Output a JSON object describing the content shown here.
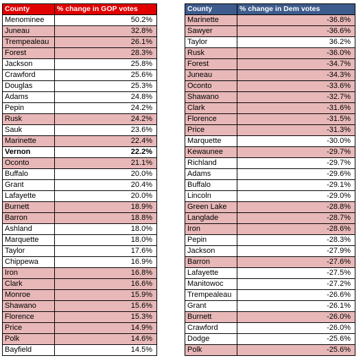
{
  "gop_table": {
    "header": {
      "county": "County",
      "change": "% change in GOP votes"
    },
    "rows": [
      {
        "county": "Menominee",
        "value": "50.2%",
        "highlight": false,
        "bold": false
      },
      {
        "county": "Juneau",
        "value": "32.8%",
        "highlight": true,
        "bold": false
      },
      {
        "county": "Trempealeau",
        "value": "26.1%",
        "highlight": true,
        "bold": false
      },
      {
        "county": "Forest",
        "value": "28.3%",
        "highlight": true,
        "bold": false
      },
      {
        "county": "Jackson",
        "value": "25.8%",
        "highlight": false,
        "bold": false
      },
      {
        "county": "Crawford",
        "value": "25.6%",
        "highlight": false,
        "bold": false
      },
      {
        "county": "Douglas",
        "value": "25.3%",
        "highlight": false,
        "bold": false
      },
      {
        "county": "Adams",
        "value": "24.8%",
        "highlight": false,
        "bold": false
      },
      {
        "county": "Pepin",
        "value": "24.2%",
        "highlight": false,
        "bold": false
      },
      {
        "county": "Rusk",
        "value": "24.2%",
        "highlight": true,
        "bold": false
      },
      {
        "county": "Sauk",
        "value": "23.6%",
        "highlight": false,
        "bold": false
      },
      {
        "county": "Marinette",
        "value": "22.4%",
        "highlight": true,
        "bold": false
      },
      {
        "county": "Vernon",
        "value": "22.2%",
        "highlight": false,
        "bold": true
      },
      {
        "county": "Oconto",
        "value": "21.1%",
        "highlight": true,
        "bold": false
      },
      {
        "county": "Buffalo",
        "value": "20.0%",
        "highlight": false,
        "bold": false
      },
      {
        "county": "Grant",
        "value": "20.4%",
        "highlight": false,
        "bold": false
      },
      {
        "county": "Lafayette",
        "value": "20.0%",
        "highlight": false,
        "bold": false
      },
      {
        "county": "Burnett",
        "value": "18.9%",
        "highlight": true,
        "bold": false
      },
      {
        "county": "Barron",
        "value": "18.8%",
        "highlight": true,
        "bold": false
      },
      {
        "county": "Ashland",
        "value": "18.0%",
        "highlight": false,
        "bold": false
      },
      {
        "county": "Marquette",
        "value": "18.0%",
        "highlight": false,
        "bold": false
      },
      {
        "county": "Taylor",
        "value": "17.6%",
        "highlight": false,
        "bold": false
      },
      {
        "county": "Chippewa",
        "value": "16.9%",
        "highlight": false,
        "bold": false
      },
      {
        "county": "Iron",
        "value": "16.8%",
        "highlight": true,
        "bold": false
      },
      {
        "county": "Clark",
        "value": "16.6%",
        "highlight": true,
        "bold": false
      },
      {
        "county": "Monroe",
        "value": "15.9%",
        "highlight": true,
        "bold": false
      },
      {
        "county": "Shawano",
        "value": "15.6%",
        "highlight": true,
        "bold": false
      },
      {
        "county": "Florence",
        "value": "15.3%",
        "highlight": true,
        "bold": false
      },
      {
        "county": "Price",
        "value": "14.9%",
        "highlight": true,
        "bold": false
      },
      {
        "county": "Polk",
        "value": "14.6%",
        "highlight": true,
        "bold": false
      },
      {
        "county": "Bayfield",
        "value": "14.5%",
        "highlight": false,
        "bold": false
      }
    ]
  },
  "dem_table": {
    "header": {
      "county": "County",
      "change": "% change in Dem votes"
    },
    "rows": [
      {
        "county": "Marinette",
        "value": "-36.8%",
        "highlight": true,
        "bold": false
      },
      {
        "county": "Sawyer",
        "value": "-36.6%",
        "highlight": true,
        "bold": false
      },
      {
        "county": "Taylor",
        "value": "36.2%",
        "highlight": false,
        "bold": false
      },
      {
        "county": "Rusk",
        "value": "-36.0%",
        "highlight": true,
        "bold": false
      },
      {
        "county": "Forest",
        "value": "-34.7%",
        "highlight": true,
        "bold": false
      },
      {
        "county": "Juneau",
        "value": "-34.3%",
        "highlight": true,
        "bold": false
      },
      {
        "county": "Oconto",
        "value": "-33.6%",
        "highlight": true,
        "bold": false
      },
      {
        "county": "Shawano",
        "value": "-32.7%",
        "highlight": true,
        "bold": false
      },
      {
        "county": "Clark",
        "value": "-31.6%",
        "highlight": true,
        "bold": false
      },
      {
        "county": "Florence",
        "value": "-31.5%",
        "highlight": true,
        "bold": false
      },
      {
        "county": "Price",
        "value": "-31.3%",
        "highlight": true,
        "bold": false
      },
      {
        "county": "Marquette",
        "value": "-30.0%",
        "highlight": false,
        "bold": false
      },
      {
        "county": "Kewaunee",
        "value": "-29.7%",
        "highlight": true,
        "bold": false
      },
      {
        "county": "Richland",
        "value": "-29.7%",
        "highlight": false,
        "bold": false
      },
      {
        "county": "Adams",
        "value": "-29.6%",
        "highlight": false,
        "bold": false
      },
      {
        "county": "Buffalo",
        "value": "-29.1%",
        "highlight": false,
        "bold": false
      },
      {
        "county": "Lincoln",
        "value": "-29.0%",
        "highlight": false,
        "bold": false
      },
      {
        "county": "Green Lake",
        "value": "-28.8%",
        "highlight": true,
        "bold": false
      },
      {
        "county": "Langlade",
        "value": "-28.7%",
        "highlight": true,
        "bold": false
      },
      {
        "county": "Iron",
        "value": "-28.6%",
        "highlight": true,
        "bold": false
      },
      {
        "county": "Pepin",
        "value": "-28.3%",
        "highlight": false,
        "bold": false
      },
      {
        "county": "Jackson",
        "value": "-27.9%",
        "highlight": false,
        "bold": false
      },
      {
        "county": "Barron",
        "value": "-27.6%",
        "highlight": true,
        "bold": false
      },
      {
        "county": "Lafayette",
        "value": "-27.5%",
        "highlight": false,
        "bold": false
      },
      {
        "county": "Manitowoc",
        "value": "-27.2%",
        "highlight": false,
        "bold": false
      },
      {
        "county": "Trempealeau",
        "value": "-26.6%",
        "highlight": false,
        "bold": false
      },
      {
        "county": "Grant",
        "value": "-26.1%",
        "highlight": false,
        "bold": false
      },
      {
        "county": "Burnett",
        "value": "-26.0%",
        "highlight": true,
        "bold": false
      },
      {
        "county": "Crawford",
        "value": "-26.0%",
        "highlight": false,
        "bold": false
      },
      {
        "county": "Dodge",
        "value": "-25.6%",
        "highlight": false,
        "bold": false
      },
      {
        "county": "Polk",
        "value": "-25.6%",
        "highlight": true,
        "bold": false
      }
    ]
  },
  "colors": {
    "gop_header": "#e00000",
    "dem_header": "#3d5b8c",
    "highlight_row": "#e8b8b8"
  }
}
